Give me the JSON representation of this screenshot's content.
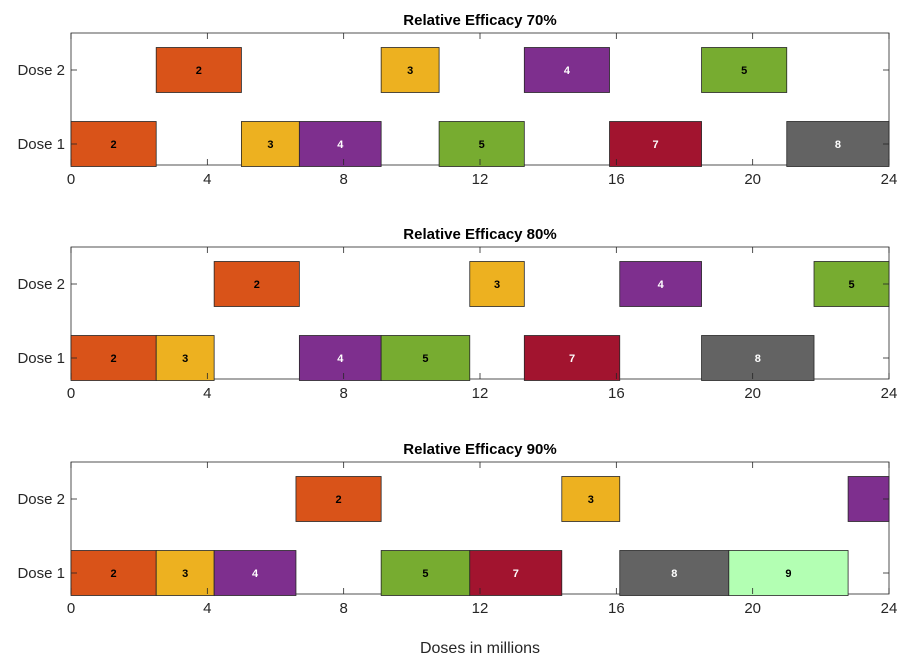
{
  "chart_data": {
    "type": "bar",
    "orientation": "horizontal",
    "xlabel": "Doses in millions",
    "xlim": [
      0,
      24
    ],
    "xticks": [
      0,
      4,
      8,
      12,
      16,
      20,
      24
    ],
    "grid": false,
    "colors": {
      "2": "#d95319",
      "3": "#edb120",
      "4": "#7e2f8e",
      "5": "#77ac30",
      "7": "#a2142f",
      "8": "#636363",
      "9": "#b3ffb3"
    },
    "label_colors": {
      "2": "#000000",
      "3": "#000000",
      "4": "#ffffff",
      "5": "#000000",
      "7": "#ffffff",
      "8": "#ffffff",
      "9": "#000000"
    },
    "panels": [
      {
        "title": "Relative Efficacy 70%",
        "categories": [
          "Dose 2",
          "Dose 1"
        ],
        "rows": [
          [
            {
              "label": "2",
              "start": 2.5,
              "end": 5.0
            },
            {
              "label": "3",
              "start": 9.1,
              "end": 10.8
            },
            {
              "label": "4",
              "start": 13.3,
              "end": 15.8
            },
            {
              "label": "5",
              "start": 18.5,
              "end": 21.0
            }
          ],
          [
            {
              "label": "2",
              "start": 0.0,
              "end": 2.5
            },
            {
              "label": "3",
              "start": 5.0,
              "end": 6.7
            },
            {
              "label": "4",
              "start": 6.7,
              "end": 9.1
            },
            {
              "label": "5",
              "start": 10.8,
              "end": 13.3
            },
            {
              "label": "7",
              "start": 15.8,
              "end": 18.5
            },
            {
              "label": "8",
              "start": 21.0,
              "end": 24.0
            }
          ]
        ]
      },
      {
        "title": "Relative Efficacy 80%",
        "categories": [
          "Dose 2",
          "Dose 1"
        ],
        "rows": [
          [
            {
              "label": "2",
              "start": 4.2,
              "end": 6.7
            },
            {
              "label": "3",
              "start": 11.7,
              "end": 13.3
            },
            {
              "label": "4",
              "start": 16.1,
              "end": 18.5
            },
            {
              "label": "5",
              "start": 21.8,
              "end": 24.0
            }
          ],
          [
            {
              "label": "2",
              "start": 0.0,
              "end": 2.5
            },
            {
              "label": "3",
              "start": 2.5,
              "end": 4.2
            },
            {
              "label": "4",
              "start": 6.7,
              "end": 9.1
            },
            {
              "label": "5",
              "start": 9.1,
              "end": 11.7
            },
            {
              "label": "7",
              "start": 13.3,
              "end": 16.1
            },
            {
              "label": "8",
              "start": 18.5,
              "end": 21.8
            }
          ]
        ]
      },
      {
        "title": "Relative Efficacy 90%",
        "categories": [
          "Dose 2",
          "Dose 1"
        ],
        "rows": [
          [
            {
              "label": "2",
              "start": 6.6,
              "end": 9.1
            },
            {
              "label": "3",
              "start": 14.4,
              "end": 16.1
            },
            {
              "label": "",
              "start": 22.8,
              "end": 24.0,
              "color_key": "4"
            }
          ],
          [
            {
              "label": "2",
              "start": 0.0,
              "end": 2.5
            },
            {
              "label": "3",
              "start": 2.5,
              "end": 4.2
            },
            {
              "label": "4",
              "start": 4.2,
              "end": 6.6
            },
            {
              "label": "5",
              "start": 9.1,
              "end": 11.7
            },
            {
              "label": "7",
              "start": 11.7,
              "end": 14.4
            },
            {
              "label": "8",
              "start": 16.1,
              "end": 19.3
            },
            {
              "label": "9",
              "start": 19.3,
              "end": 22.8
            }
          ]
        ]
      }
    ]
  }
}
